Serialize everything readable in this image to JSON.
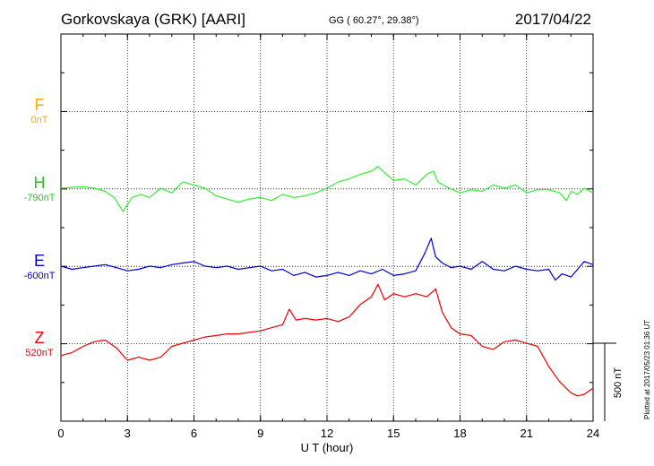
{
  "header": {
    "title": "Gorkovskaya (GRK)  [AARI]",
    "coords": "GG ( 60.27°,  29.38°)",
    "date": "2017/04/22"
  },
  "footer": {
    "plotted": "Plotted at 2017/05/23 01:36 UT"
  },
  "scale_bar": {
    "label": "500 nT",
    "value_nT": 500
  },
  "colors": {
    "F": "#ffaa00",
    "H": "#33ee33",
    "E": "#0000cc",
    "Z": "#ee0000"
  },
  "chart_data": {
    "type": "line",
    "xlabel": "U T (hour)",
    "xlim": [
      0,
      24
    ],
    "xticks": [
      "0",
      "3",
      "6",
      "9",
      "12",
      "15",
      "18",
      "21",
      "24"
    ],
    "units_per_grid": 500,
    "series": [
      {
        "name": "F",
        "baseline": "0nT",
        "values": []
      },
      {
        "name": "H",
        "baseline": "-790nT",
        "x": [
          0,
          0.5,
          1,
          1.5,
          2,
          2.4,
          2.8,
          3.2,
          3.6,
          4,
          4.5,
          5,
          5.5,
          6,
          6.5,
          7,
          7.5,
          8,
          8.5,
          9,
          9.5,
          10,
          10.5,
          11,
          11.5,
          12,
          12.5,
          13,
          13.5,
          14,
          14.3,
          14.6,
          15,
          15.5,
          16,
          16.5,
          16.8,
          17,
          17.5,
          18,
          18.5,
          19,
          19.5,
          20,
          20.5,
          21,
          21.5,
          22,
          22.5,
          22.8,
          23,
          23.3,
          23.6,
          24
        ],
        "values": [
          0,
          5,
          10,
          0,
          -20,
          -60,
          -150,
          -60,
          -40,
          -60,
          0,
          -30,
          40,
          20,
          0,
          -50,
          -70,
          -90,
          -70,
          -60,
          -80,
          -40,
          -60,
          -50,
          -30,
          0,
          40,
          60,
          90,
          110,
          140,
          100,
          50,
          60,
          20,
          90,
          110,
          40,
          0,
          -30,
          -10,
          -20,
          20,
          0,
          20,
          -30,
          -10,
          -10,
          -30,
          -80,
          -20,
          -40,
          0,
          -30
        ]
      },
      {
        "name": "E",
        "baseline": "-600nT",
        "x": [
          0,
          0.5,
          1,
          1.5,
          2,
          2.5,
          3,
          3.5,
          4,
          4.5,
          5,
          5.5,
          6,
          6.5,
          7,
          7.5,
          8,
          8.5,
          9,
          9.5,
          10,
          10.5,
          11,
          11.5,
          12,
          12.5,
          13,
          13.5,
          14,
          14.5,
          15,
          15.5,
          16,
          16.4,
          16.7,
          16.9,
          17.2,
          17.6,
          18,
          18.5,
          19,
          19.5,
          20,
          20.5,
          21,
          21.5,
          22,
          22.3,
          22.6,
          23,
          23.3,
          23.6,
          24
        ],
        "values": [
          0,
          -20,
          -10,
          0,
          10,
          -10,
          -30,
          -20,
          0,
          -10,
          10,
          20,
          30,
          0,
          -10,
          0,
          -20,
          -10,
          0,
          -30,
          -20,
          -60,
          -40,
          -70,
          -60,
          -40,
          -60,
          -30,
          -50,
          -20,
          -60,
          -50,
          -30,
          80,
          180,
          60,
          20,
          -10,
          0,
          -20,
          30,
          -20,
          -30,
          0,
          -20,
          -30,
          -20,
          -90,
          -50,
          -70,
          -20,
          30,
          10
        ]
      },
      {
        "name": "Z",
        "baseline": "520nT",
        "x": [
          0,
          0.5,
          1,
          1.5,
          2,
          2.5,
          3,
          3.5,
          4,
          4.5,
          5,
          5.5,
          6,
          6.5,
          7,
          7.5,
          8,
          8.5,
          9,
          9.5,
          10,
          10.3,
          10.6,
          11,
          11.5,
          12,
          12.5,
          13,
          13.5,
          14,
          14.3,
          14.6,
          15,
          15.5,
          16,
          16.5,
          16.9,
          17.2,
          17.6,
          18,
          18.5,
          19,
          19.5,
          20,
          20.5,
          21,
          21.5,
          22,
          22.5,
          23,
          23.3,
          23.6,
          24
        ],
        "values": [
          -80,
          -60,
          -20,
          10,
          20,
          -30,
          -110,
          -90,
          -110,
          -90,
          -20,
          0,
          20,
          40,
          50,
          60,
          60,
          70,
          80,
          100,
          120,
          220,
          150,
          160,
          150,
          160,
          140,
          170,
          250,
          300,
          380,
          280,
          320,
          300,
          320,
          300,
          350,
          200,
          100,
          60,
          50,
          -20,
          -40,
          10,
          20,
          0,
          -20,
          -150,
          -250,
          -320,
          -340,
          -330,
          -290
        ]
      }
    ]
  }
}
